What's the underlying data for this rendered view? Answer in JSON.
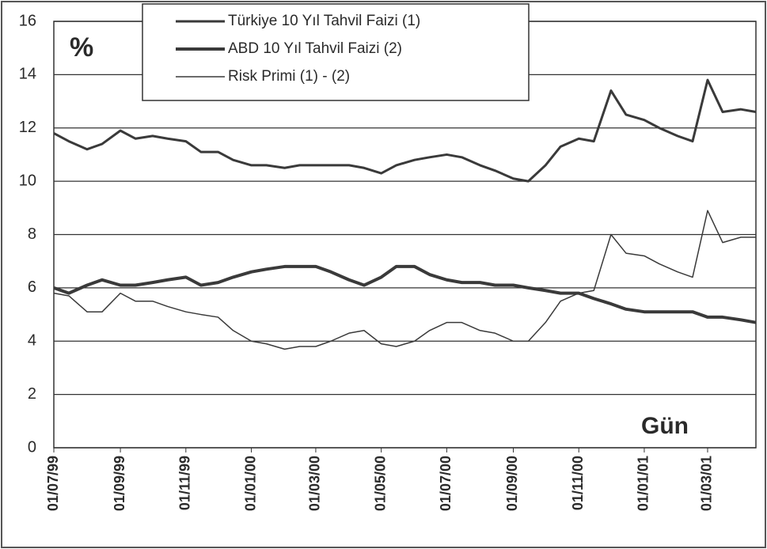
{
  "chart_data": {
    "type": "line",
    "y_label": "%",
    "x_label": "Gün",
    "x": [
      "01/07/99",
      "15/07/99",
      "01/08/99",
      "15/08/99",
      "01/09/99",
      "15/09/99",
      "01/10/99",
      "15/10/99",
      "01/11/99",
      "15/11/99",
      "01/12/99",
      "15/12/99",
      "01/01/00",
      "15/01/00",
      "01/02/00",
      "15/02/00",
      "01/03/00",
      "15/03/00",
      "01/04/00",
      "15/04/00",
      "01/05/00",
      "15/05/00",
      "01/06/00",
      "15/06/00",
      "01/07/00",
      "15/07/00",
      "01/08/00",
      "15/08/00",
      "01/09/00",
      "15/09/00",
      "01/10/00",
      "15/10/00",
      "01/11/00",
      "15/11/00",
      "01/12/00",
      "15/12/00",
      "01/01/01",
      "15/01/01",
      "01/02/01",
      "15/02/01",
      "01/03/01",
      "15/03/01",
      "01/04/01",
      "15/04/01"
    ],
    "series": [
      {
        "name": "Türkiye 10 Yıl  Tahvil Faizi (1)",
        "color": "#3a3a3a",
        "width": 3,
        "values": [
          11.8,
          11.5,
          11.2,
          11.4,
          11.9,
          11.6,
          11.7,
          11.6,
          11.5,
          11.1,
          11.1,
          10.8,
          10.6,
          10.6,
          10.5,
          10.6,
          10.6,
          10.6,
          10.6,
          10.5,
          10.3,
          10.6,
          10.8,
          10.9,
          11.0,
          10.9,
          10.6,
          10.4,
          10.1,
          10.0,
          10.6,
          11.3,
          11.6,
          11.5,
          13.4,
          12.5,
          12.3,
          12.0,
          11.7,
          11.5,
          13.8,
          12.6,
          12.7,
          12.6
        ]
      },
      {
        "name": "ABD 10 Yıl  Tahvil Faizi (2)",
        "color": "#3a3a3a",
        "width": 4,
        "values": [
          6.0,
          5.8,
          6.1,
          6.3,
          6.1,
          6.1,
          6.2,
          6.3,
          6.4,
          6.1,
          6.2,
          6.4,
          6.6,
          6.7,
          6.8,
          6.8,
          6.8,
          6.6,
          6.3,
          6.1,
          6.4,
          6.8,
          6.8,
          6.5,
          6.3,
          6.2,
          6.2,
          6.1,
          6.1,
          6.0,
          5.9,
          5.8,
          5.8,
          5.6,
          5.4,
          5.2,
          5.1,
          5.1,
          5.1,
          5.1,
          4.9,
          4.9,
          4.8,
          4.7
        ]
      },
      {
        "name": "Risk Primi (1) - (2)",
        "color": "#3a3a3a",
        "width": 1.5,
        "values": [
          5.8,
          5.7,
          5.1,
          5.1,
          5.8,
          5.5,
          5.5,
          5.3,
          5.1,
          5.0,
          4.9,
          4.4,
          4.0,
          3.9,
          3.7,
          3.8,
          3.8,
          4.0,
          4.3,
          4.4,
          3.9,
          3.8,
          4.0,
          4.4,
          4.7,
          4.7,
          4.4,
          4.3,
          4.0,
          4.0,
          4.7,
          5.5,
          5.8,
          5.9,
          8.0,
          7.3,
          7.2,
          6.9,
          6.6,
          6.4,
          8.9,
          7.7,
          7.9,
          7.9
        ]
      }
    ],
    "xlim": [
      "01/07/99",
      "15/04/01"
    ],
    "xticks": [
      "01/07/99",
      "01/09/99",
      "01/11/99",
      "01/01/00",
      "01/03/00",
      "01/05/00",
      "01/07/00",
      "01/09/00",
      "01/11/00",
      "01/01/01",
      "01/03/01"
    ],
    "ylim": [
      0,
      16
    ],
    "yticks": [
      0,
      2,
      4,
      6,
      8,
      10,
      12,
      14,
      16
    ],
    "grid": true,
    "legend": "top"
  }
}
